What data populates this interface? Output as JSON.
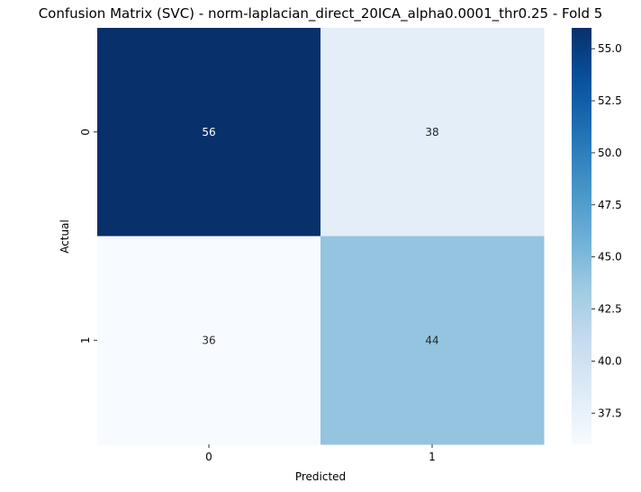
{
  "chart_data": {
    "type": "heatmap",
    "title": "Confusion Matrix (SVC) - norm-laplacian_direct_20ICA_alpha0.0001_thr0.25 - Fold 5",
    "xlabel": "Predicted",
    "ylabel": "Actual",
    "x_categories": [
      "0",
      "1"
    ],
    "y_categories": [
      "0",
      "1"
    ],
    "values": [
      [
        56,
        38
      ],
      [
        36,
        44
      ]
    ],
    "value_labels": [
      [
        "56",
        "38"
      ],
      [
        "36",
        "44"
      ]
    ],
    "colormap": "Blues",
    "vmin": 36,
    "vmax": 56,
    "colorbar_ticks": [
      37.5,
      40.0,
      42.5,
      45.0,
      47.5,
      50.0,
      52.5,
      55.0
    ],
    "colorbar_tick_labels": [
      "37.5",
      "40.0",
      "42.5",
      "45.0",
      "47.5",
      "50.0",
      "52.5",
      "55.0"
    ],
    "grid": false,
    "colorbar_placement": "right"
  }
}
